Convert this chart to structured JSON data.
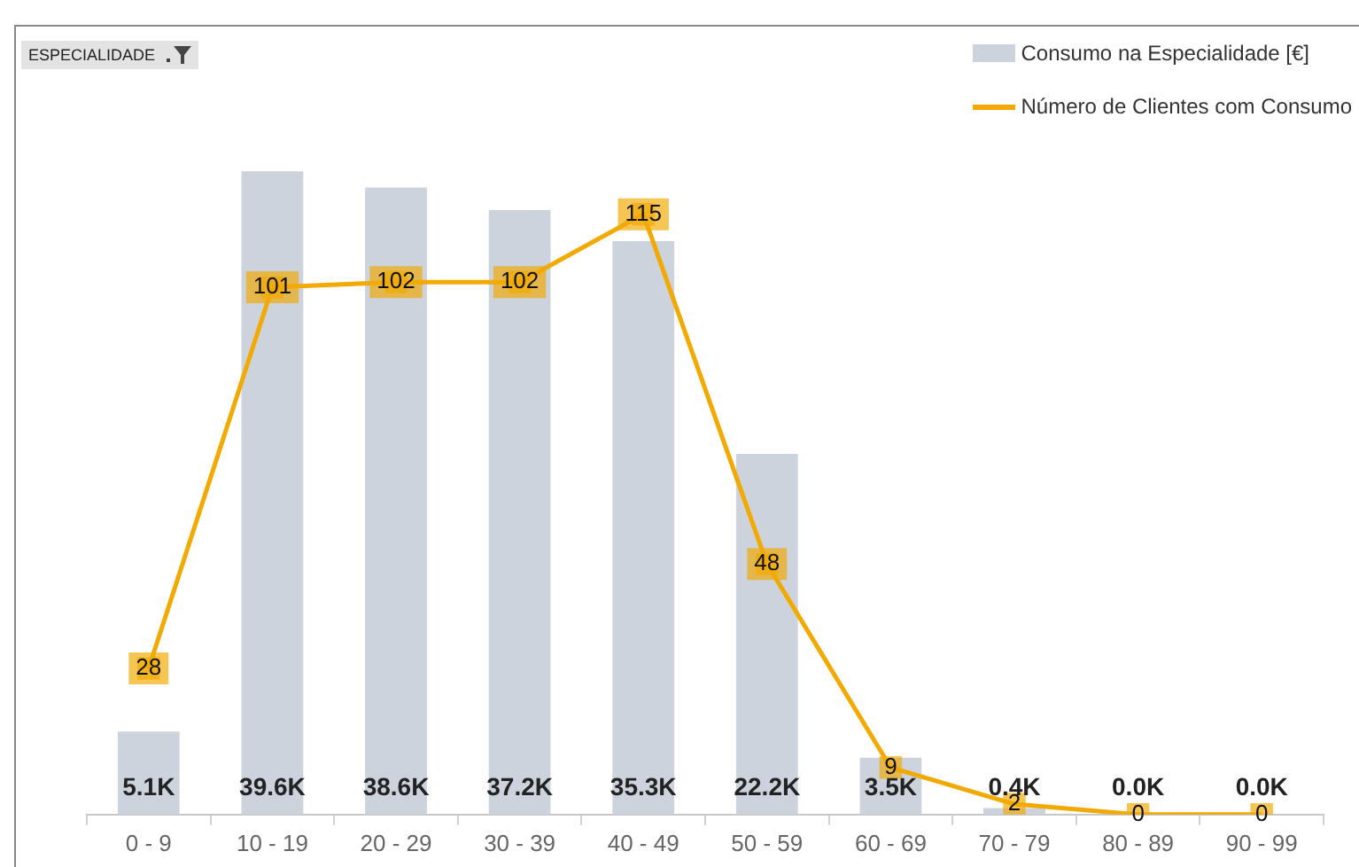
{
  "chart_data": {
    "type": "bar",
    "annotations": [
      "ESPECIALIDADE"
    ],
    "categories": [
      "0 - 9",
      "10 - 19",
      "20 - 29",
      "30 - 39",
      "40 - 49",
      "50 - 59",
      "60 - 69",
      "70 - 79",
      "80 - 89",
      "90 - 99"
    ],
    "series": [
      {
        "name": "Consumo na Especialidade [€]",
        "color": "#cdd3dd",
        "values": [
          5100,
          39600,
          38600,
          37200,
          35300,
          22200,
          3500,
          400,
          0,
          0
        ],
        "value_labels": [
          "5.1K",
          "39.6K",
          "38.6K",
          "37.2K",
          "35.3K",
          "22.2K",
          "3.5K",
          "0.4K",
          "0.0K",
          "0.0K"
        ]
      },
      {
        "name": "Número de Clientes com Consumo",
        "type": "line",
        "axis": "y2",
        "color": "#f2a900",
        "values": [
          28,
          101,
          102,
          102,
          115,
          48,
          9,
          2,
          0,
          0
        ],
        "value_labels": [
          "28",
          "101",
          "102",
          "102",
          "115",
          "48",
          "9",
          "2",
          "0",
          "0"
        ]
      }
    ],
    "ylim": [
      0,
      43700
    ],
    "y2lim": [
      0,
      136
    ],
    "legend": "top right",
    "grid": false,
    "marker": "square"
  }
}
